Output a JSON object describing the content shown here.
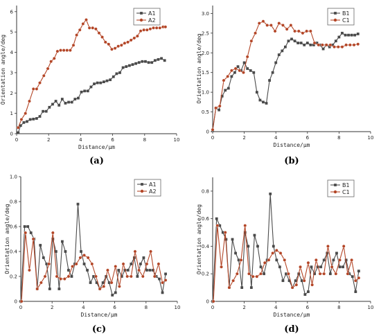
{
  "colors": {
    "gray": "#4a4a4a",
    "red": "#b34526"
  },
  "chart_data": [
    {
      "type": "line",
      "panel": "(a)",
      "xlabel": "Distance/μm",
      "ylabel": "Orientation angle/deg",
      "xlim": [
        0,
        10
      ],
      "ylim": [
        0,
        6.3
      ],
      "xticks": [
        0,
        2,
        4,
        6,
        8,
        10
      ],
      "yticks": [
        0,
        1,
        2,
        3,
        4,
        5,
        6
      ],
      "legend": "top-right",
      "series": [
        {
          "name": "A1",
          "color": "gray",
          "marker": "square",
          "x": [
            0.1,
            0.25,
            0.45,
            0.65,
            0.85,
            1.05,
            1.25,
            1.45,
            1.65,
            1.85,
            2.05,
            2.25,
            2.45,
            2.65,
            2.85,
            3.05,
            3.25,
            3.45,
            3.65,
            3.85,
            4.05,
            4.25,
            4.45,
            4.65,
            4.85,
            5.05,
            5.25,
            5.45,
            5.65,
            5.85,
            6.05,
            6.25,
            6.45,
            6.65,
            6.85,
            7.05,
            7.25,
            7.45,
            7.65,
            7.85,
            8.05,
            8.25,
            8.45,
            8.65,
            8.85,
            9.05,
            9.25
          ],
          "y": [
            0.05,
            0.4,
            0.55,
            0.6,
            0.7,
            0.72,
            0.75,
            0.85,
            1.1,
            1.1,
            1.3,
            1.45,
            1.6,
            1.4,
            1.7,
            1.5,
            1.55,
            1.55,
            1.7,
            1.75,
            2.05,
            2.1,
            2.1,
            2.3,
            2.45,
            2.5,
            2.5,
            2.55,
            2.6,
            2.65,
            2.8,
            2.95,
            3.0,
            3.25,
            3.3,
            3.35,
            3.4,
            3.45,
            3.5,
            3.55,
            3.55,
            3.5,
            3.5,
            3.6,
            3.65,
            3.7,
            3.6
          ]
        },
        {
          "name": "A2",
          "color": "red",
          "marker": "circle",
          "x": [
            0.1,
            0.3,
            0.55,
            0.8,
            1.05,
            1.25,
            1.45,
            1.7,
            1.95,
            2.15,
            2.35,
            2.55,
            2.75,
            2.95,
            3.15,
            3.35,
            3.55,
            3.75,
            3.95,
            4.15,
            4.35,
            4.55,
            4.75,
            4.95,
            5.15,
            5.35,
            5.55,
            5.75,
            5.95,
            6.15,
            6.35,
            6.55,
            6.75,
            6.95,
            7.15,
            7.35,
            7.55,
            7.75,
            7.95,
            8.15,
            8.35,
            8.55,
            8.75,
            8.95,
            9.15,
            9.3
          ],
          "y": [
            0.3,
            0.7,
            1.0,
            1.6,
            2.2,
            2.2,
            2.5,
            2.85,
            3.2,
            3.55,
            3.7,
            4.05,
            4.1,
            4.1,
            4.1,
            4.1,
            4.35,
            4.85,
            5.1,
            5.4,
            5.6,
            5.2,
            5.2,
            5.15,
            4.95,
            4.75,
            4.5,
            4.4,
            4.15,
            4.2,
            4.3,
            4.35,
            4.45,
            4.5,
            4.6,
            4.7,
            4.8,
            5.05,
            5.1,
            5.1,
            5.15,
            5.2,
            5.2,
            5.2,
            5.25,
            5.25
          ]
        }
      ]
    },
    {
      "type": "line",
      "panel": "(b)",
      "xlabel": "Distance/μm",
      "ylabel": "Orientation angle/deg",
      "xlim": [
        0,
        10
      ],
      "ylim": [
        0,
        3.2
      ],
      "xticks": [
        0,
        2,
        4,
        6,
        8,
        10
      ],
      "yticks": [
        0,
        0.5,
        1.0,
        1.5,
        2.0,
        2.5,
        3.0
      ],
      "ytick_labels": [
        "0",
        "0.5",
        "1.0",
        "1.5",
        "2.0",
        "2.5",
        "3.0"
      ],
      "legend": "top-right",
      "series": [
        {
          "name": "B1",
          "color": "gray",
          "marker": "square",
          "x": [
            0.0,
            0.2,
            0.4,
            0.6,
            0.8,
            1.0,
            1.2,
            1.4,
            1.6,
            1.8,
            2.0,
            2.2,
            2.4,
            2.6,
            2.8,
            3.0,
            3.2,
            3.4,
            3.6,
            3.8,
            4.0,
            4.2,
            4.4,
            4.6,
            4.8,
            5.0,
            5.2,
            5.4,
            5.6,
            5.8,
            6.0,
            6.2,
            6.4,
            6.6,
            6.8,
            7.0,
            7.2,
            7.4,
            7.6,
            7.8,
            8.0,
            8.2,
            8.4,
            8.6,
            8.8,
            9.0,
            9.2
          ],
          "y": [
            0.02,
            0.6,
            0.55,
            0.9,
            1.05,
            1.1,
            1.4,
            1.5,
            1.65,
            1.55,
            1.75,
            1.6,
            1.55,
            1.5,
            1.0,
            0.8,
            0.75,
            0.72,
            1.3,
            1.5,
            1.75,
            1.95,
            2.05,
            2.15,
            2.3,
            2.35,
            2.3,
            2.25,
            2.25,
            2.2,
            2.25,
            2.2,
            2.2,
            2.25,
            2.2,
            2.1,
            2.2,
            2.15,
            2.2,
            2.3,
            2.4,
            2.5,
            2.45,
            2.45,
            2.45,
            2.45,
            2.48
          ]
        },
        {
          "name": "C1",
          "color": "red",
          "marker": "circle",
          "x": [
            0.0,
            0.2,
            0.45,
            0.7,
            0.95,
            1.2,
            1.45,
            1.7,
            1.95,
            2.2,
            2.45,
            2.7,
            2.95,
            3.2,
            3.45,
            3.7,
            3.95,
            4.2,
            4.45,
            4.7,
            4.95,
            5.2,
            5.45,
            5.7,
            5.95,
            6.2,
            6.45,
            6.7,
            6.95,
            7.2,
            7.45,
            7.7,
            7.95,
            8.2,
            8.45,
            8.7,
            8.95,
            9.2
          ],
          "y": [
            0.05,
            0.6,
            0.65,
            1.3,
            1.4,
            1.55,
            1.6,
            1.55,
            1.5,
            1.9,
            2.3,
            2.5,
            2.75,
            2.8,
            2.7,
            2.7,
            2.55,
            2.75,
            2.7,
            2.6,
            2.7,
            2.55,
            2.55,
            2.5,
            2.55,
            2.55,
            2.25,
            2.2,
            2.2,
            2.2,
            2.2,
            2.15,
            2.15,
            2.15,
            2.2,
            2.2,
            2.2,
            2.22
          ]
        }
      ]
    },
    {
      "type": "line",
      "panel": "(c)",
      "xlabel": "Distance/μm",
      "ylabel": "Orientation angle/deg",
      "xlim": [
        0,
        10
      ],
      "ylim": [
        0,
        1.0
      ],
      "xticks": [
        0,
        2,
        4,
        6,
        8,
        10
      ],
      "yticks": [
        0,
        0.2,
        0.4,
        0.6,
        0.8,
        1.0
      ],
      "ytick_labels": [
        "0",
        "0.2",
        "0.4",
        "0.6",
        "0.8",
        "1.0"
      ],
      "legend": "top-right",
      "series": [
        {
          "name": "A1",
          "color": "gray",
          "marker": "square",
          "x": [
            0.0,
            0.25,
            0.45,
            0.65,
            0.85,
            1.05,
            1.25,
            1.45,
            1.65,
            1.85,
            2.05,
            2.25,
            2.45,
            2.65,
            2.85,
            3.05,
            3.25,
            3.45,
            3.65,
            3.85,
            4.05,
            4.25,
            4.45,
            4.65,
            4.85,
            5.05,
            5.25,
            5.45,
            5.65,
            5.85,
            6.05,
            6.25,
            6.45,
            6.65,
            6.85,
            7.05,
            7.25,
            7.45,
            7.65,
            7.85,
            8.05,
            8.25,
            8.45,
            8.65,
            8.85,
            9.05,
            9.25
          ],
          "y": [
            0.0,
            0.6,
            0.6,
            0.55,
            0.5,
            0.1,
            0.45,
            0.35,
            0.3,
            0.1,
            0.5,
            0.4,
            0.1,
            0.48,
            0.4,
            0.25,
            0.2,
            0.3,
            0.78,
            0.4,
            0.3,
            0.25,
            0.15,
            0.2,
            0.15,
            0.1,
            0.15,
            0.2,
            0.15,
            0.05,
            0.07,
            0.25,
            0.2,
            0.25,
            0.25,
            0.3,
            0.35,
            0.2,
            0.3,
            0.35,
            0.25,
            0.25,
            0.25,
            0.2,
            0.18,
            0.07,
            0.22
          ]
        },
        {
          "name": "A2",
          "color": "red",
          "marker": "circle",
          "x": [
            0.05,
            0.3,
            0.55,
            0.8,
            1.05,
            1.3,
            1.55,
            1.8,
            2.05,
            2.3,
            2.55,
            2.8,
            3.05,
            3.3,
            3.55,
            3.8,
            4.05,
            4.3,
            4.55,
            4.8,
            5.05,
            5.3,
            5.55,
            5.8,
            6.05,
            6.3,
            6.55,
            6.8,
            7.05,
            7.3,
            7.55,
            7.8,
            8.05,
            8.3,
            8.55,
            8.8,
            9.05,
            9.25
          ],
          "y": [
            0.0,
            0.55,
            0.25,
            0.5,
            0.1,
            0.15,
            0.2,
            0.3,
            0.55,
            0.2,
            0.18,
            0.18,
            0.2,
            0.28,
            0.3,
            0.35,
            0.37,
            0.35,
            0.3,
            0.2,
            0.1,
            0.12,
            0.25,
            0.15,
            0.28,
            0.12,
            0.3,
            0.2,
            0.2,
            0.4,
            0.25,
            0.2,
            0.3,
            0.4,
            0.2,
            0.3,
            0.15,
            0.17
          ]
        }
      ]
    },
    {
      "type": "line",
      "panel": "(d)",
      "xlabel": "Distance/μm",
      "ylabel": "Orientation angle/deg",
      "xlim": [
        0,
        10
      ],
      "ylim": [
        0,
        0.9
      ],
      "xticks": [
        0,
        2,
        4,
        6,
        8,
        10
      ],
      "yticks": [
        0,
        0.2,
        0.4,
        0.6,
        0.8
      ],
      "ytick_labels": [
        "0",
        "0.2",
        "0.4",
        "0.6",
        "0.8"
      ],
      "legend": "top-right",
      "series": [
        {
          "name": "B1",
          "color": "gray",
          "marker": "square",
          "x": [
            0.0,
            0.25,
            0.45,
            0.65,
            0.85,
            1.05,
            1.25,
            1.45,
            1.65,
            1.85,
            2.05,
            2.25,
            2.45,
            2.65,
            2.85,
            3.05,
            3.25,
            3.45,
            3.65,
            3.85,
            4.05,
            4.25,
            4.45,
            4.65,
            4.85,
            5.05,
            5.25,
            5.45,
            5.65,
            5.85,
            6.05,
            6.25,
            6.45,
            6.65,
            6.85,
            7.05,
            7.25,
            7.45,
            7.65,
            7.85,
            8.05,
            8.25,
            8.45,
            8.65,
            8.85,
            9.05,
            9.25
          ],
          "y": [
            0.0,
            0.6,
            0.55,
            0.5,
            0.45,
            0.1,
            0.45,
            0.35,
            0.3,
            0.1,
            0.5,
            0.4,
            0.1,
            0.48,
            0.4,
            0.25,
            0.2,
            0.3,
            0.78,
            0.4,
            0.3,
            0.25,
            0.15,
            0.2,
            0.15,
            0.1,
            0.15,
            0.2,
            0.15,
            0.05,
            0.07,
            0.25,
            0.2,
            0.25,
            0.25,
            0.3,
            0.35,
            0.2,
            0.3,
            0.35,
            0.25,
            0.25,
            0.3,
            0.2,
            0.18,
            0.07,
            0.22
          ]
        },
        {
          "name": "C1",
          "color": "red",
          "marker": "circle",
          "x": [
            0.05,
            0.3,
            0.55,
            0.8,
            1.05,
            1.3,
            1.55,
            1.8,
            2.05,
            2.3,
            2.55,
            2.8,
            3.05,
            3.3,
            3.55,
            3.8,
            4.05,
            4.3,
            4.55,
            4.8,
            5.05,
            5.3,
            5.55,
            5.8,
            6.05,
            6.3,
            6.55,
            6.8,
            7.05,
            7.3,
            7.55,
            7.8,
            8.05,
            8.3,
            8.55,
            8.8,
            9.05,
            9.25
          ],
          "y": [
            0.0,
            0.55,
            0.25,
            0.5,
            0.1,
            0.15,
            0.2,
            0.3,
            0.55,
            0.2,
            0.18,
            0.18,
            0.2,
            0.28,
            0.3,
            0.35,
            0.37,
            0.35,
            0.3,
            0.2,
            0.1,
            0.12,
            0.25,
            0.15,
            0.28,
            0.12,
            0.3,
            0.2,
            0.2,
            0.4,
            0.25,
            0.2,
            0.3,
            0.4,
            0.2,
            0.3,
            0.15,
            0.17
          ]
        }
      ]
    }
  ]
}
